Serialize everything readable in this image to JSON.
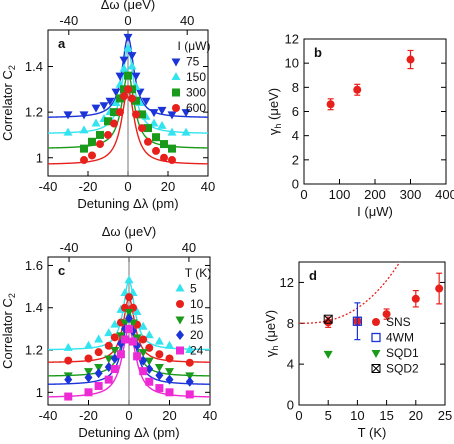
{
  "colors": {
    "blue": "#1a34d8",
    "cyan": "#33e4f0",
    "green": "#1a9a1a",
    "red": "#e8201c",
    "magenta": "#ee2ad4",
    "axis": "#000000",
    "dotted_fit": "#e8201c"
  },
  "chart_data": [
    {
      "panel": "a",
      "type": "scatter",
      "xlabel": "Detuning Δλ (pm)",
      "ylabel": "Correlator C",
      "ylabel_sub": "2",
      "top_xlabel": "Δω (μeV)",
      "xlim": [
        -40,
        40
      ],
      "ylim": [
        0.92,
        1.56
      ],
      "xticks": [
        -40,
        -20,
        0,
        20,
        40
      ],
      "yticks": [
        1.0,
        1.2,
        1.4
      ],
      "top_xticks": [
        -40,
        0,
        40
      ],
      "legend_title": "I (μW)",
      "legend_position": "top-right",
      "series": [
        {
          "name": "75",
          "color": "blue",
          "marker": "triangle-down",
          "baseline": 1.175,
          "amp": 0.355,
          "width": 3.6,
          "x": [
            -30,
            -22,
            -16,
            -12,
            -9,
            -6,
            -4,
            -2,
            0,
            2,
            4,
            6,
            9,
            13,
            17,
            22,
            29
          ],
          "y": [
            1.19,
            1.19,
            1.22,
            1.23,
            1.25,
            1.29,
            1.36,
            1.43,
            1.53,
            1.45,
            1.36,
            1.29,
            1.25,
            1.2,
            1.21,
            1.19,
            1.2
          ]
        },
        {
          "name": "150",
          "color": "cyan",
          "marker": "triangle-up",
          "baseline": 1.105,
          "amp": 0.375,
          "width": 3.6,
          "x": [
            -30,
            -22,
            -16,
            -12,
            -9,
            -6,
            -4,
            -2,
            0,
            2,
            4,
            6,
            9,
            13,
            17,
            22,
            29
          ],
          "y": [
            1.11,
            1.12,
            1.15,
            1.17,
            1.2,
            1.24,
            1.32,
            1.39,
            1.48,
            1.4,
            1.31,
            1.24,
            1.18,
            1.15,
            1.14,
            1.11,
            1.11
          ]
        },
        {
          "name": "300",
          "color": "green",
          "marker": "square",
          "baseline": 1.04,
          "amp": 0.33,
          "width": 3.8,
          "x": [
            -22,
            -18,
            -14,
            -10,
            -7,
            -4,
            -2,
            0,
            2,
            4,
            7,
            10,
            14,
            18,
            22
          ],
          "y": [
            1.04,
            1.07,
            1.1,
            1.16,
            1.2,
            1.26,
            1.3,
            1.36,
            1.3,
            1.25,
            1.19,
            1.13,
            1.09,
            1.06,
            1.04
          ]
        },
        {
          "name": "600",
          "color": "red",
          "marker": "circle",
          "baseline": 0.97,
          "amp": 0.325,
          "width": 4.0,
          "x": [
            -22,
            -18,
            -14,
            -10,
            -7,
            -4,
            -2,
            0,
            2,
            4,
            7,
            10,
            14,
            18,
            22
          ],
          "y": [
            0.99,
            1.01,
            1.06,
            1.1,
            1.15,
            1.2,
            1.27,
            1.3,
            1.26,
            1.19,
            1.13,
            1.07,
            1.03,
            1.0,
            0.99
          ]
        }
      ]
    },
    {
      "panel": "b",
      "type": "scatter",
      "xlabel": "I (μW)",
      "ylabel": "γ",
      "ylabel_sub": "h",
      "ylabel_unit": " (μeV)",
      "xlim": [
        0,
        400
      ],
      "ylim": [
        0,
        12
      ],
      "xticks": [
        0,
        100,
        200,
        300,
        400
      ],
      "yticks": [
        0,
        2,
        4,
        6,
        8,
        10,
        12
      ],
      "series": [
        {
          "color": "red",
          "marker": "circle",
          "x": [
            75,
            150,
            300
          ],
          "y": [
            6.6,
            7.8,
            10.3
          ],
          "err": [
            0.45,
            0.45,
            0.75
          ]
        }
      ]
    },
    {
      "panel": "c",
      "type": "scatter",
      "xlabel": "Detuning Δλ (pm)",
      "ylabel": "Correlator C",
      "ylabel_sub": "2",
      "top_xlabel": "Δω (μeV)",
      "xlim": [
        -40,
        40
      ],
      "ylim": [
        0.94,
        1.64
      ],
      "xticks": [
        -40,
        -20,
        0,
        20,
        40
      ],
      "yticks": [
        1.0,
        1.2,
        1.4,
        1.6
      ],
      "top_xticks": [
        -40,
        0,
        40
      ],
      "legend_title": "T (K)",
      "legend_position": "top-right",
      "series": [
        {
          "name": "5",
          "color": "cyan",
          "marker": "triangle-up",
          "baseline": 1.2,
          "amp": 0.33,
          "width": 3.4,
          "x": [
            -30,
            -20,
            -15,
            -10,
            -7,
            -4,
            -2,
            0,
            2,
            4,
            7,
            10,
            15,
            20,
            30
          ],
          "y": [
            1.21,
            1.22,
            1.25,
            1.28,
            1.32,
            1.39,
            1.47,
            1.53,
            1.47,
            1.38,
            1.31,
            1.27,
            1.24,
            1.22,
            1.2
          ]
        },
        {
          "name": "10",
          "color": "red",
          "marker": "circle",
          "baseline": 1.14,
          "amp": 0.305,
          "width": 3.6,
          "x": [
            -30,
            -20,
            -15,
            -10,
            -7,
            -4,
            -2,
            0,
            2,
            4,
            7,
            10,
            15,
            20,
            30
          ],
          "y": [
            1.15,
            1.16,
            1.19,
            1.22,
            1.26,
            1.33,
            1.4,
            1.45,
            1.4,
            1.32,
            1.25,
            1.21,
            1.18,
            1.16,
            1.14
          ]
        },
        {
          "name": "15",
          "color": "green",
          "marker": "triangle-down",
          "baseline": 1.075,
          "amp": 0.305,
          "width": 3.8,
          "x": [
            -30,
            -20,
            -15,
            -10,
            -7,
            -4,
            -2,
            0,
            2,
            4,
            7,
            10,
            15,
            20,
            30
          ],
          "y": [
            1.08,
            1.1,
            1.12,
            1.16,
            1.2,
            1.27,
            1.33,
            1.38,
            1.33,
            1.26,
            1.19,
            1.15,
            1.12,
            1.1,
            1.08
          ]
        },
        {
          "name": "20",
          "color": "blue",
          "marker": "diamond",
          "baseline": 1.035,
          "amp": 0.315,
          "width": 4.0,
          "x": [
            -30,
            -20,
            -15,
            -10,
            -7,
            -4,
            -2,
            0,
            2,
            4,
            7,
            10,
            15,
            20,
            30
          ],
          "y": [
            1.06,
            1.07,
            1.09,
            1.12,
            1.16,
            1.23,
            1.3,
            1.35,
            1.29,
            1.22,
            1.15,
            1.11,
            1.08,
            1.06,
            1.05
          ]
        },
        {
          "name": "24",
          "color": "magenta",
          "marker": "square",
          "baseline": 0.975,
          "amp": 0.325,
          "width": 4.2,
          "x": [
            -30,
            -20,
            -15,
            -10,
            -7,
            -4,
            -2,
            0,
            2,
            4,
            7,
            10,
            15,
            20,
            30
          ],
          "y": [
            0.98,
            1.0,
            1.03,
            1.06,
            1.11,
            1.18,
            1.25,
            1.3,
            1.24,
            1.17,
            1.1,
            1.05,
            1.02,
            1.0,
            0.99
          ]
        }
      ]
    },
    {
      "panel": "d",
      "type": "scatter",
      "xlabel": "T (K)",
      "ylabel": "γ",
      "ylabel_sub": "h",
      "ylabel_unit": " (μeV)",
      "xlim": [
        0,
        25
      ],
      "ylim": [
        0,
        14
      ],
      "xticks": [
        0,
        5,
        10,
        15,
        20,
        25
      ],
      "yticks": [
        0,
        4,
        8,
        12
      ],
      "legend_position": "bottom-right",
      "fit": {
        "type": "dotted",
        "color": "dotted_fit",
        "base": 8.0,
        "scale": 0.0042,
        "power": 2.55
      },
      "series": [
        {
          "name": "SNS",
          "color": "red",
          "marker": "circle",
          "x": [
            5,
            10,
            15,
            20,
            24
          ],
          "y": [
            8.1,
            8.2,
            8.9,
            10.4,
            11.4
          ],
          "err": [
            0.5,
            0.4,
            0.5,
            0.8,
            1.5
          ]
        },
        {
          "name": "4WM",
          "color": "blue",
          "marker": "open-square",
          "x": [
            10
          ],
          "y": [
            8.2
          ],
          "err": [
            1.8
          ]
        },
        {
          "name": "SQD1",
          "color": "green",
          "marker": "triangle-down",
          "x": [
            5
          ],
          "y": [
            5.0
          ],
          "err": []
        },
        {
          "name": "SQD2",
          "color": "axis",
          "marker": "crossed-square",
          "x": [
            5
          ],
          "y": [
            8.4
          ],
          "err": []
        }
      ]
    }
  ]
}
